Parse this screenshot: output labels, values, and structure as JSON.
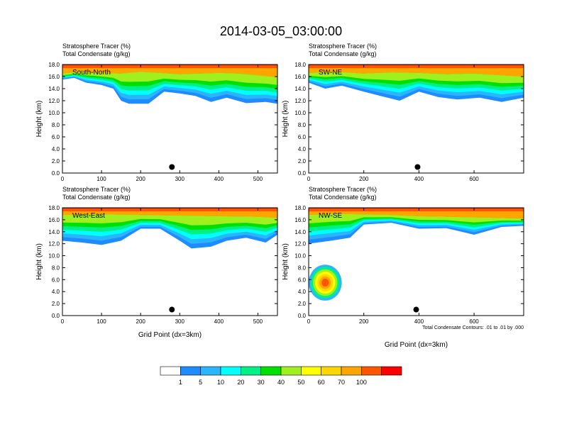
{
  "title": "2014-03-05_03:00:00",
  "chart_data": {
    "type": "heatmap",
    "title": "2014-03-05_03:00:00",
    "field_labels": [
      "Stratosphere Tracer   (%)",
      "Total Condensate   (g/kg)"
    ],
    "ylabel": "Height (km)",
    "xlabel": "Grid Point (dx=3km)",
    "contour_note": "Total Condensate Contours: .01 to .01 by .000",
    "colorbar": {
      "colors": [
        "#ffffff",
        "#1e8cff",
        "#2ab6ff",
        "#00ffff",
        "#00f088",
        "#00e000",
        "#a0f020",
        "#ffff00",
        "#ffd700",
        "#ffa500",
        "#ff5500",
        "#ff0000"
      ],
      "labels": [
        "1",
        "5",
        "10",
        "20",
        "30",
        "40",
        "50",
        "60",
        "70",
        "100"
      ]
    },
    "panels": [
      {
        "name": "South-North",
        "ylim": [
          0,
          18
        ],
        "xlim": [
          0,
          550
        ],
        "xticks": [
          "0",
          "100",
          "200",
          "300",
          "400",
          "500"
        ],
        "xtick_values": [
          0,
          100,
          200,
          300,
          400,
          500
        ],
        "yticks": [
          "0.0",
          "2.0",
          "4.0",
          "6.0",
          "8.0",
          "10.0",
          "12.0",
          "14.0",
          "16.0",
          "18.0"
        ],
        "marker": {
          "x": 280,
          "y": 1.0
        },
        "tracer_top": [
          [
            0,
            16.5
          ],
          [
            40,
            16.8
          ],
          [
            100,
            16.6
          ],
          [
            150,
            16.5
          ],
          [
            200,
            16.8
          ],
          [
            250,
            16.6
          ],
          [
            300,
            16.4
          ],
          [
            350,
            16.5
          ],
          [
            400,
            16.6
          ],
          [
            450,
            16.5
          ],
          [
            500,
            16.2
          ],
          [
            550,
            15.9
          ]
        ],
        "tracer_bottom": [
          [
            0,
            15.5
          ],
          [
            30,
            15.8
          ],
          [
            60,
            15.0
          ],
          [
            100,
            14.6
          ],
          [
            130,
            14.0
          ],
          [
            150,
            12.0
          ],
          [
            170,
            11.5
          ],
          [
            220,
            11.5
          ],
          [
            260,
            13.5
          ],
          [
            300,
            13.2
          ],
          [
            340,
            12.8
          ],
          [
            380,
            11.8
          ],
          [
            420,
            12.5
          ],
          [
            470,
            11.6
          ],
          [
            520,
            11.8
          ],
          [
            550,
            11.5
          ]
        ]
      },
      {
        "name": "SW-NE",
        "ylim": [
          0,
          18
        ],
        "xlim": [
          0,
          780
        ],
        "xticks": [
          "0",
          "200",
          "400",
          "600"
        ],
        "xtick_values": [
          0,
          200,
          400,
          600
        ],
        "yticks": [
          "0.0",
          "2.0",
          "4.0",
          "6.0",
          "8.0",
          "10.0",
          "12.0",
          "14.0",
          "16.0",
          "18.0"
        ],
        "marker": {
          "x": 395,
          "y": 1.0
        },
        "tracer_top": [
          [
            0,
            16.6
          ],
          [
            100,
            16.8
          ],
          [
            200,
            16.5
          ],
          [
            300,
            16.7
          ],
          [
            400,
            16.6
          ],
          [
            500,
            16.4
          ],
          [
            600,
            16.5
          ],
          [
            700,
            16.2
          ],
          [
            780,
            16.0
          ]
        ],
        "tracer_bottom": [
          [
            0,
            15.0
          ],
          [
            60,
            14.0
          ],
          [
            120,
            14.5
          ],
          [
            200,
            13.5
          ],
          [
            260,
            12.8
          ],
          [
            330,
            12.0
          ],
          [
            400,
            13.5
          ],
          [
            470,
            12.6
          ],
          [
            540,
            12.2
          ],
          [
            620,
            12.5
          ],
          [
            700,
            11.8
          ],
          [
            780,
            12.5
          ]
        ]
      },
      {
        "name": "West-East",
        "ylim": [
          0,
          18
        ],
        "xlim": [
          0,
          550
        ],
        "xticks": [
          "0",
          "100",
          "200",
          "300",
          "400",
          "500"
        ],
        "xtick_values": [
          0,
          100,
          200,
          300,
          400,
          500
        ],
        "yticks": [
          "0.0",
          "2.0",
          "4.0",
          "6.0",
          "8.0",
          "10.0",
          "12.0",
          "14.0",
          "16.0",
          "18.0"
        ],
        "marker": {
          "x": 280,
          "y": 1.0
        },
        "tracer_top": [
          [
            0,
            16.8
          ],
          [
            100,
            16.9
          ],
          [
            200,
            16.8
          ],
          [
            300,
            16.7
          ],
          [
            400,
            16.6
          ],
          [
            500,
            16.5
          ],
          [
            550,
            16.3
          ]
        ],
        "tracer_bottom": [
          [
            0,
            12.5
          ],
          [
            50,
            12.2
          ],
          [
            100,
            11.8
          ],
          [
            150,
            12.5
          ],
          [
            200,
            14.5
          ],
          [
            250,
            14.5
          ],
          [
            300,
            12.5
          ],
          [
            330,
            11.2
          ],
          [
            380,
            11.5
          ],
          [
            420,
            12.5
          ],
          [
            470,
            13.0
          ],
          [
            520,
            12.2
          ],
          [
            550,
            13.5
          ]
        ]
      },
      {
        "name": "NW-SE",
        "ylim": [
          0,
          18
        ],
        "xlim": [
          0,
          780
        ],
        "xticks": [
          "0",
          "200",
          "400",
          "600"
        ],
        "xtick_values": [
          0,
          200,
          400,
          600
        ],
        "yticks": [
          "0.0",
          "2.0",
          "4.0",
          "6.0",
          "8.0",
          "10.0",
          "12.0",
          "14.0",
          "16.0",
          "18.0"
        ],
        "marker": {
          "x": 390,
          "y": 1.0
        },
        "tracer_top": [
          [
            0,
            16.8
          ],
          [
            100,
            17.0
          ],
          [
            200,
            16.9
          ],
          [
            300,
            16.8
          ],
          [
            400,
            16.6
          ],
          [
            500,
            16.5
          ],
          [
            600,
            16.4
          ],
          [
            700,
            16.3
          ],
          [
            780,
            16.2
          ]
        ],
        "tracer_bottom": [
          [
            0,
            12.0
          ],
          [
            80,
            12.5
          ],
          [
            150,
            13.0
          ],
          [
            200,
            15.2
          ],
          [
            300,
            15.5
          ],
          [
            400,
            14.5
          ],
          [
            500,
            14.6
          ],
          [
            600,
            13.5
          ],
          [
            700,
            14.8
          ],
          [
            780,
            15.0
          ]
        ],
        "deep_cell": {
          "x_range": [
            0,
            120
          ],
          "y_range": [
            2.5,
            8.5
          ],
          "peak_x": 60,
          "peak_y": 5.5
        }
      }
    ]
  }
}
